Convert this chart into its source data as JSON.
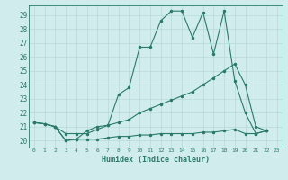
{
  "xlabel": "Humidex (Indice chaleur)",
  "ylabel": "",
  "bg_color": "#d0ecec",
  "grid_color": "#b8d8d8",
  "line_color": "#2a7a6a",
  "xlim": [
    -0.5,
    23.5
  ],
  "ylim": [
    19.5,
    29.7
  ],
  "xticks": [
    0,
    1,
    2,
    3,
    4,
    5,
    6,
    7,
    8,
    9,
    10,
    11,
    12,
    13,
    14,
    15,
    16,
    17,
    18,
    19,
    20,
    21,
    22,
    23
  ],
  "yticks": [
    20,
    21,
    22,
    23,
    24,
    25,
    26,
    27,
    28,
    29
  ],
  "series": [
    [
      21.3,
      21.2,
      21.0,
      20.0,
      20.1,
      20.1,
      20.1,
      20.2,
      20.3,
      20.3,
      20.4,
      20.4,
      20.5,
      20.5,
      20.5,
      20.5,
      20.6,
      20.6,
      20.7,
      20.8,
      20.5,
      20.5,
      20.7
    ],
    [
      21.3,
      21.2,
      21.0,
      20.5,
      20.5,
      20.5,
      20.8,
      21.1,
      21.3,
      21.5,
      22.0,
      22.3,
      22.6,
      22.9,
      23.2,
      23.5,
      24.0,
      24.5,
      25.0,
      25.5,
      24.0,
      21.0,
      20.7
    ],
    [
      21.3,
      21.2,
      21.0,
      20.0,
      20.1,
      20.7,
      21.0,
      21.1,
      23.3,
      23.8,
      26.7,
      26.7,
      28.6,
      29.3,
      29.3,
      27.4,
      29.2,
      26.2,
      29.3,
      24.3,
      22.0,
      20.5,
      20.7
    ]
  ]
}
